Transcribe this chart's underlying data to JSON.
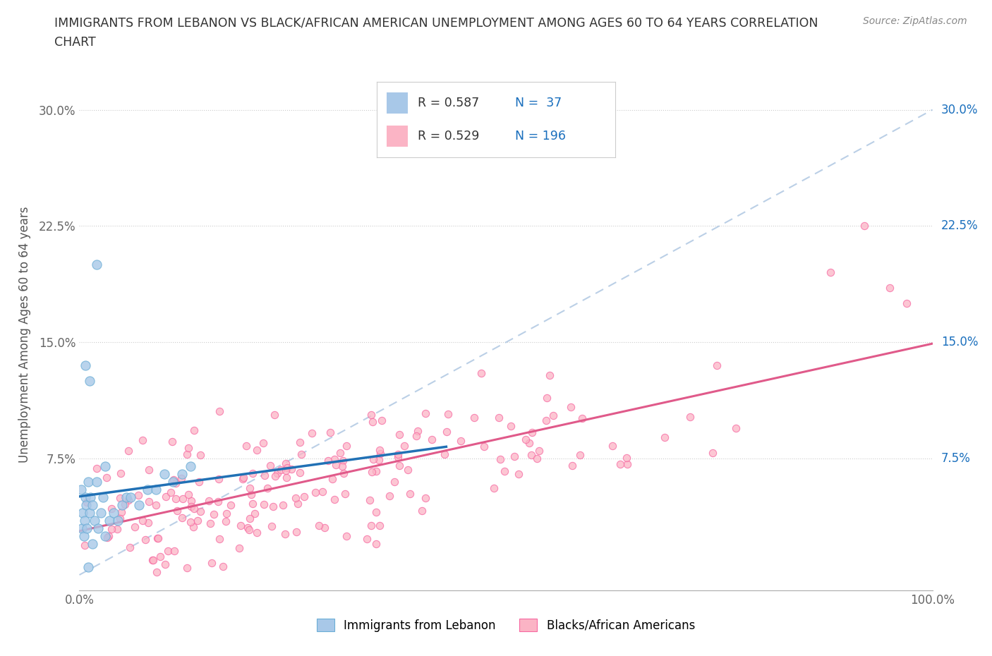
{
  "title_line1": "IMMIGRANTS FROM LEBANON VS BLACK/AFRICAN AMERICAN UNEMPLOYMENT AMONG AGES 60 TO 64 YEARS CORRELATION",
  "title_line2": "CHART",
  "source": "Source: ZipAtlas.com",
  "ylabel": "Unemployment Among Ages 60 to 64 years",
  "xlim": [
    0,
    1.0
  ],
  "ylim": [
    -0.01,
    0.32
  ],
  "yticks": [
    0.0,
    0.075,
    0.15,
    0.225,
    0.3
  ],
  "ytick_labels": [
    "",
    "7.5%",
    "15.0%",
    "22.5%",
    "30.0%"
  ],
  "xticks": [
    0.0,
    0.1,
    0.2,
    0.3,
    0.4,
    0.5,
    0.6,
    0.7,
    0.8,
    0.9,
    1.0
  ],
  "xtick_labels": [
    "0.0%",
    "",
    "",
    "",
    "",
    "",
    "",
    "",
    "",
    "",
    "100.0%"
  ],
  "legend_R1": "0.587",
  "legend_N1": "37",
  "legend_R2": "0.529",
  "legend_N2": "196",
  "color_blue_fill": "#a8c8e8",
  "color_blue_edge": "#6baed6",
  "color_blue_line": "#2171b5",
  "color_pink_fill": "#fbb4c5",
  "color_pink_edge": "#f768a1",
  "color_pink_line": "#e05a8a",
  "color_diagonal": "#aac4e0",
  "color_grid": "#cccccc",
  "color_title": "#333333",
  "color_legend_val": "#1a6fbd",
  "background_color": "#ffffff",
  "figsize": [
    14.06,
    9.3
  ],
  "dpi": 100
}
